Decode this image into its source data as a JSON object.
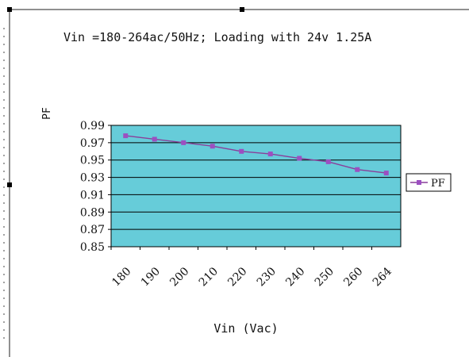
{
  "chart_data": {
    "type": "line",
    "title": "Vin =180-264ac/50Hz; Loading with 24v 1.25A",
    "xlabel": "Vin (Vac)",
    "ylabel": "PF",
    "categories": [
      "180",
      "190",
      "200",
      "210",
      "220",
      "230",
      "240",
      "250",
      "260",
      "264"
    ],
    "series": [
      {
        "name": "PF",
        "values": [
          0.978,
          0.974,
          0.97,
          0.966,
          0.96,
          0.957,
          0.952,
          0.948,
          0.939,
          0.935
        ]
      }
    ],
    "ylim": [
      0.85,
      0.99
    ],
    "yticks": [
      "0.99",
      "0.97",
      "0.95",
      "0.93",
      "0.91",
      "0.89",
      "0.87",
      "0.85"
    ],
    "grid": true,
    "legend_position": "right",
    "colors": {
      "plot_background": "#66ccd9",
      "series_line": "#8a3f9a",
      "series_marker": "#9c4fc1",
      "gridline": "#000000"
    }
  }
}
